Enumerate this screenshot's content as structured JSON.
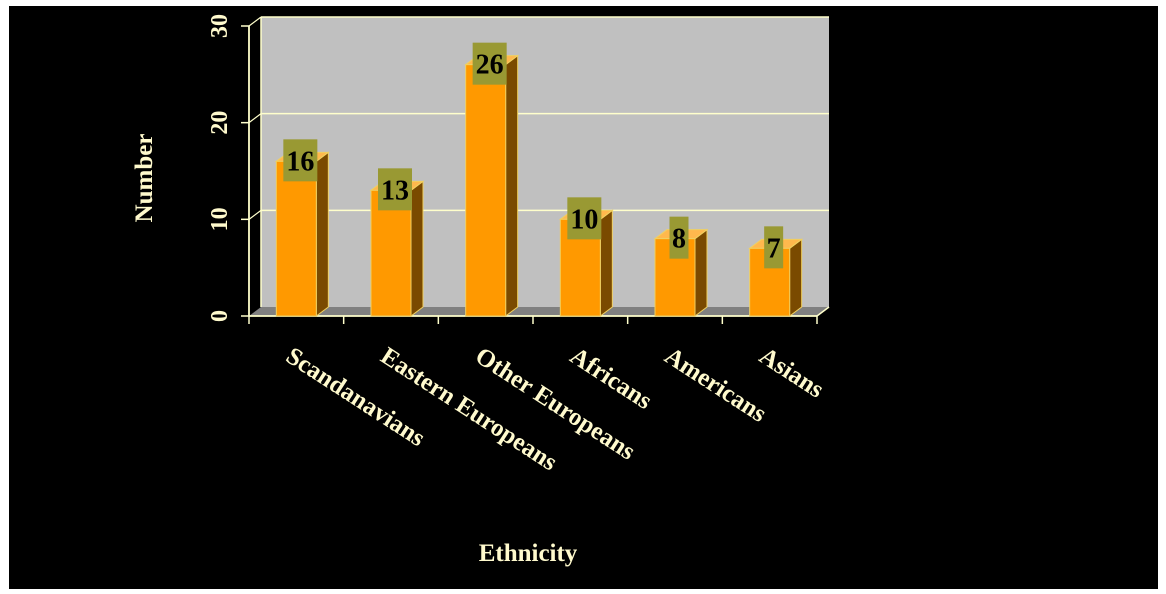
{
  "chart_data": {
    "type": "bar",
    "title": "",
    "xlabel": "Ethnicity",
    "ylabel": "Number",
    "categories": [
      "Scandanavians",
      "Eastern Europeans",
      "Other Europeans",
      "Africans",
      "Americans",
      "Asians"
    ],
    "values": [
      16,
      13,
      26,
      10,
      8,
      7
    ],
    "data_labels": [
      "16",
      "13",
      "26",
      "10",
      "8",
      "7"
    ],
    "y_ticks": [
      "0",
      "10",
      "20",
      "30"
    ],
    "ylim": [
      0,
      30
    ],
    "grid": true,
    "legend": "none",
    "three_d": true,
    "colors": {
      "background": "#000000",
      "plot_wall": "#c0c0c0",
      "bar_front": "#ff9900",
      "bar_side": "#7a4a00",
      "bar_top": "#ffb84d",
      "label_box": "#999933",
      "text": "#fffacd",
      "gridline": "#ffffcc"
    }
  }
}
